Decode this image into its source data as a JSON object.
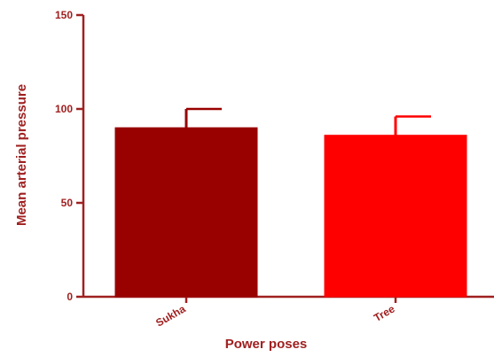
{
  "chart_data": {
    "type": "bar",
    "categories": [
      "Sukha",
      "Tree"
    ],
    "values": [
      90,
      86
    ],
    "error_upper": [
      100,
      96
    ],
    "colors": [
      "#990000",
      "#ff0000"
    ],
    "axis_color": "#a02020",
    "xlabel": "Power poses",
    "ylabel": "Mean arterial pressure",
    "ylim": [
      0,
      150
    ],
    "yticks": [
      0,
      50,
      100,
      150
    ],
    "grid": false,
    "legend": "none"
  }
}
